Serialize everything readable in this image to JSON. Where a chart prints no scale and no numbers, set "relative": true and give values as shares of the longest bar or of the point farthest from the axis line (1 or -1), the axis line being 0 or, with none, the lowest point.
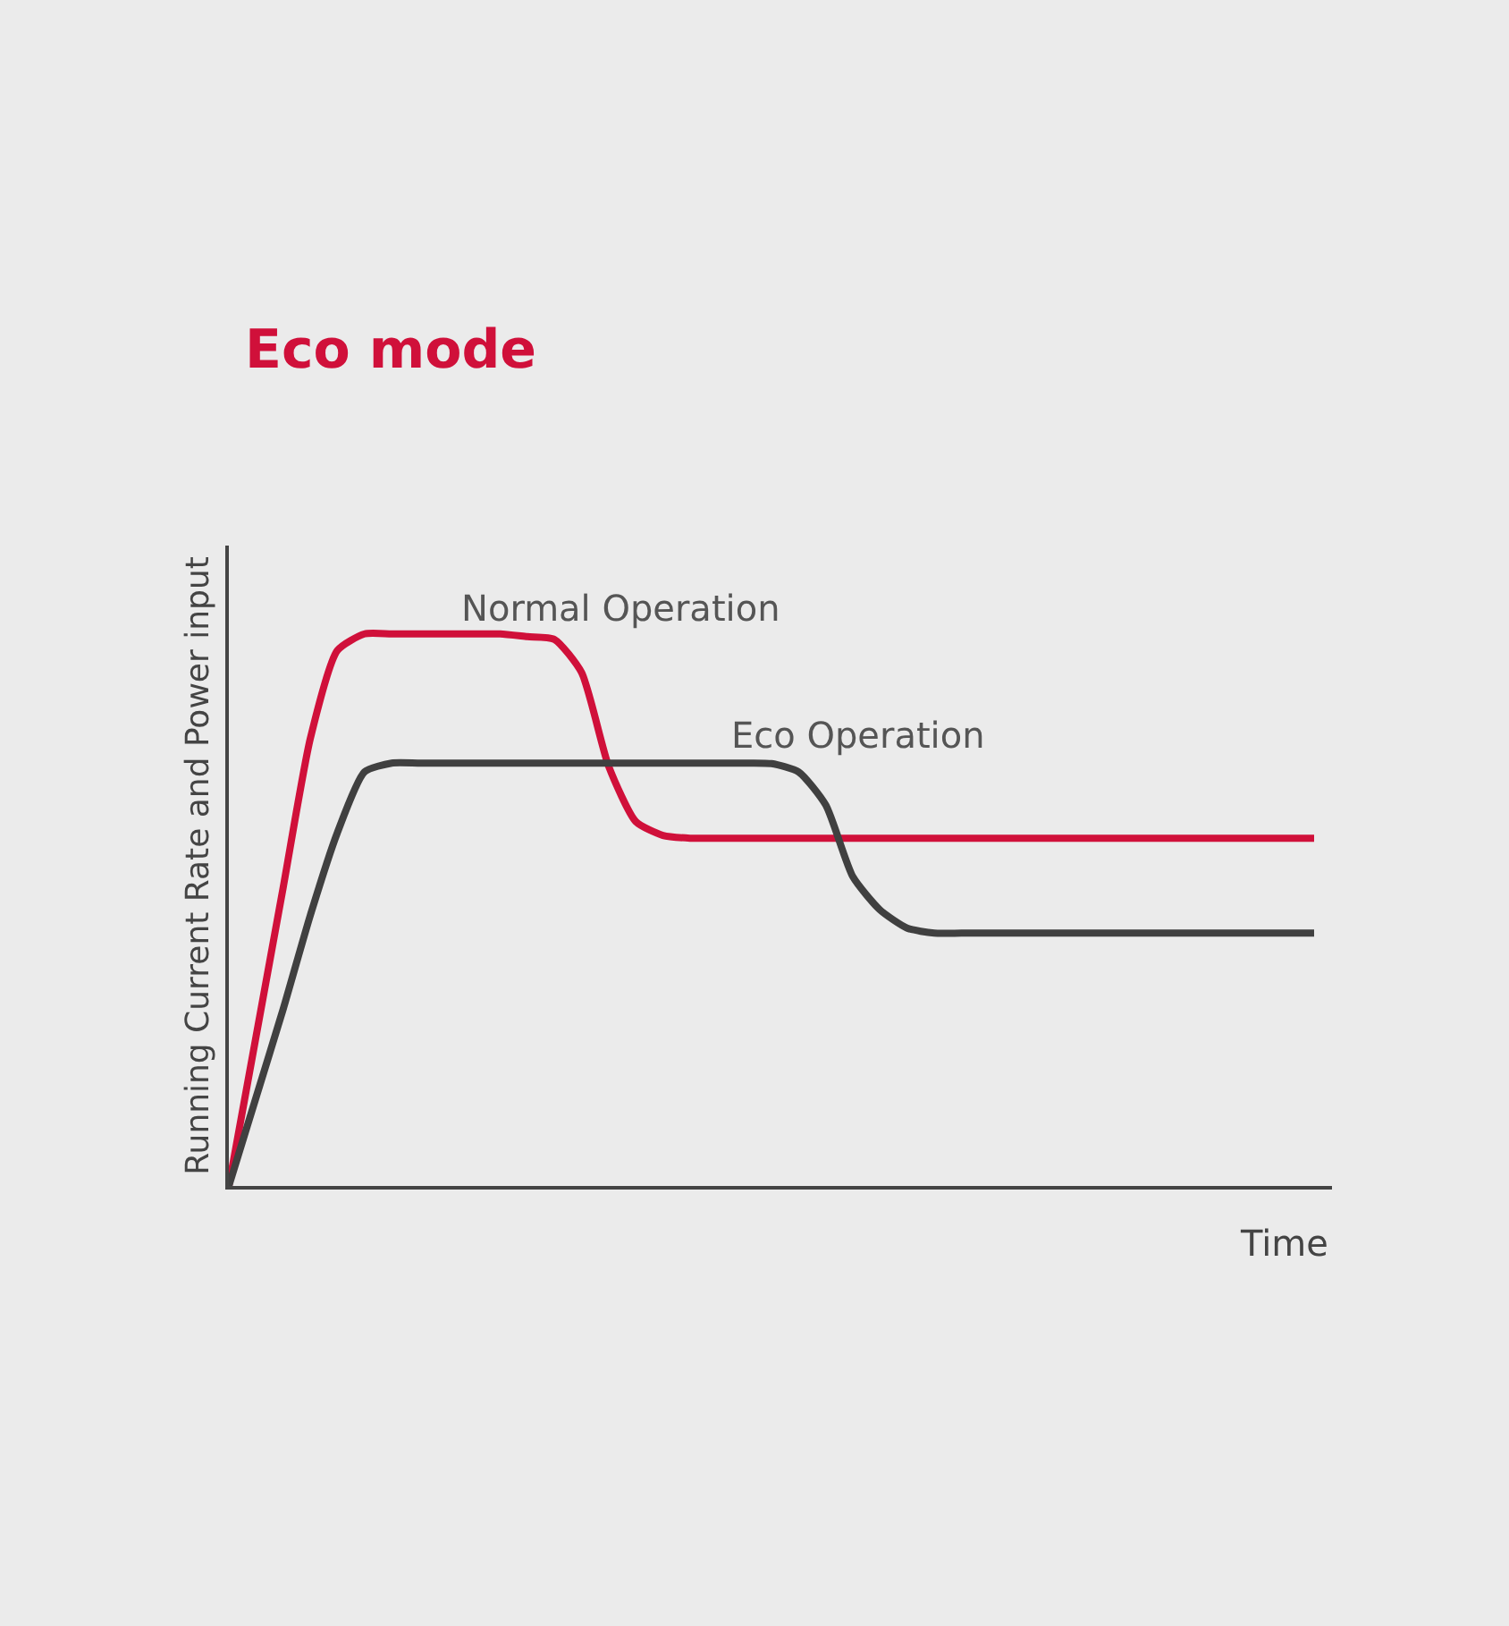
{
  "chart_data": {
    "type": "line",
    "title": "Eco mode",
    "xlabel": "Time",
    "ylabel": "Running Current Rate and Power input",
    "relative": true,
    "legend": false,
    "grid": false,
    "marker": "none",
    "line_style": "solid",
    "categories": [
      null,
      null,
      null,
      null,
      null,
      null,
      null,
      null,
      null,
      null,
      null,
      null,
      null,
      null,
      null,
      null,
      null,
      null,
      null,
      null,
      null,
      null,
      null,
      null,
      null,
      null,
      null,
      null,
      null,
      null,
      null,
      null,
      null,
      null,
      null,
      null,
      null,
      null,
      null,
      null,
      null
    ],
    "series": [
      {
        "name": "Normal Operation",
        "color": "#d0103a",
        "values": [
          0,
          0.27,
          0.54,
          0.81,
          0.97,
          1,
          1,
          1,
          1,
          1,
          1,
          0.995,
          0.99,
          0.93,
          0.76,
          0.66,
          0.635,
          0.63,
          0.63,
          0.63,
          0.63,
          0.63,
          0.63,
          0.63,
          0.63,
          0.63,
          0.63,
          0.63,
          0.63,
          0.63,
          0.63,
          0.63,
          0.63,
          0.63,
          0.63,
          0.63,
          0.63,
          0.63,
          0.63,
          0.63,
          0.63
        ]
      },
      {
        "name": "Eco Operation",
        "color": "#404040",
        "values": [
          0,
          0.16,
          0.32,
          0.49,
          0.64,
          0.75,
          0.766,
          0.766,
          0.766,
          0.766,
          0.766,
          0.766,
          0.766,
          0.766,
          0.766,
          0.766,
          0.766,
          0.766,
          0.766,
          0.766,
          0.765,
          0.75,
          0.69,
          0.56,
          0.5,
          0.467,
          0.458,
          0.458,
          0.458,
          0.458,
          0.458,
          0.458,
          0.458,
          0.458,
          0.458,
          0.458,
          0.458,
          0.458,
          0.458,
          0.458,
          0.458
        ]
      }
    ]
  }
}
